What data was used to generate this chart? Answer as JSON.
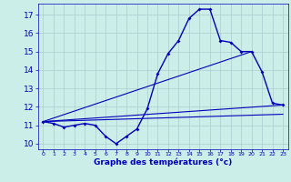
{
  "xlabel": "Graphe des températures (°c)",
  "bg_color": "#cceee8",
  "grid_color": "#aacccc",
  "line_color": "#0000bb",
  "xlim": [
    -0.5,
    23.5
  ],
  "ylim": [
    9.7,
    17.6
  ],
  "yticks": [
    10,
    11,
    12,
    13,
    14,
    15,
    16,
    17
  ],
  "xticks": [
    0,
    1,
    2,
    3,
    4,
    5,
    6,
    7,
    8,
    9,
    10,
    11,
    12,
    13,
    14,
    15,
    16,
    17,
    18,
    19,
    20,
    21,
    22,
    23
  ],
  "hours": [
    0,
    1,
    2,
    3,
    4,
    5,
    6,
    7,
    8,
    9,
    10,
    11,
    12,
    13,
    14,
    15,
    16,
    17,
    18,
    19,
    20,
    21,
    22,
    23
  ],
  "temps": [
    11.2,
    11.1,
    10.9,
    11.0,
    11.1,
    11.0,
    10.4,
    10.0,
    10.4,
    10.8,
    11.9,
    13.8,
    14.9,
    15.6,
    16.8,
    17.3,
    17.3,
    15.6,
    15.5,
    15.0,
    15.0,
    13.9,
    12.2,
    12.1
  ],
  "trend1_x": [
    0,
    23
  ],
  "trend1_y": [
    11.2,
    12.1
  ],
  "trend2_x": [
    0,
    20
  ],
  "trend2_y": [
    11.2,
    15.0
  ],
  "trend3_x": [
    0,
    23
  ],
  "trend3_y": [
    11.2,
    11.6
  ]
}
